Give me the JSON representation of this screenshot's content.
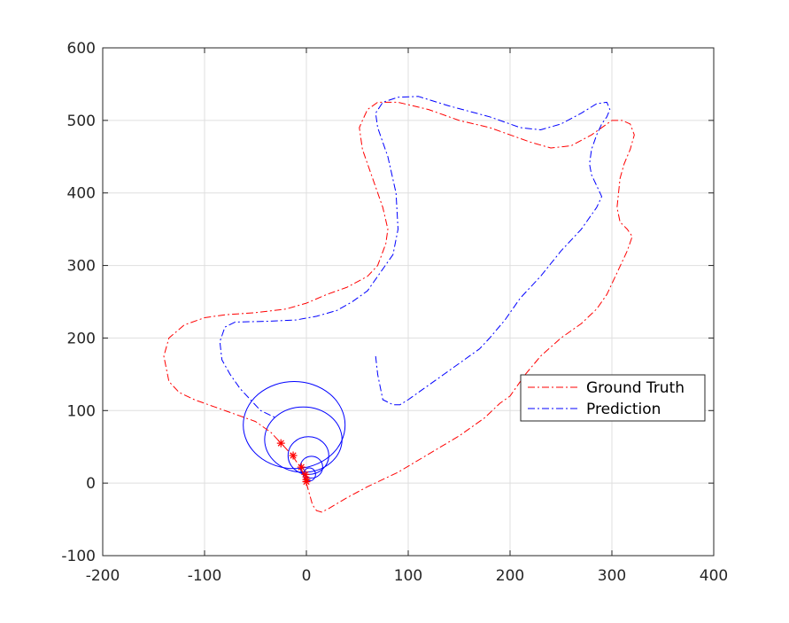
{
  "chart_data": {
    "type": "line",
    "title": "",
    "xlabel": "",
    "ylabel": "",
    "xlim": [
      -200,
      400
    ],
    "ylim": [
      -100,
      600
    ],
    "xticks": [
      -200,
      -100,
      0,
      100,
      200,
      300,
      400
    ],
    "yticks": [
      -100,
      0,
      100,
      200,
      300,
      400,
      500,
      600
    ],
    "grid": true,
    "legend_position": "center-right",
    "series": [
      {
        "name": "Ground Truth",
        "color": "#ff0000",
        "style": "dash-dot",
        "x": [
          0,
          2,
          4,
          6,
          10,
          15,
          22,
          40,
          60,
          90,
          120,
          150,
          175,
          190,
          200,
          215,
          230,
          250,
          270,
          285,
          295,
          305,
          315,
          320,
          315,
          308,
          305,
          308,
          312,
          318,
          322,
          318,
          310,
          300,
          280,
          260,
          240,
          220,
          200,
          180,
          150,
          120,
          90,
          70,
          60,
          55,
          52,
          55,
          65,
          75,
          80,
          78,
          70,
          60,
          40,
          20,
          0,
          -20,
          -50,
          -80,
          -100,
          -120,
          -135,
          -140,
          -135,
          -125,
          -110,
          -90,
          -70,
          -50,
          -35,
          -25,
          -15,
          -5,
          0
        ],
        "y": [
          0,
          -10,
          -20,
          -30,
          -38,
          -40,
          -35,
          -20,
          -5,
          15,
          40,
          65,
          90,
          110,
          120,
          150,
          175,
          200,
          220,
          240,
          260,
          290,
          320,
          340,
          350,
          360,
          380,
          420,
          440,
          460,
          480,
          495,
          500,
          500,
          480,
          465,
          462,
          470,
          480,
          490,
          500,
          515,
          525,
          525,
          515,
          500,
          490,
          460,
          420,
          380,
          350,
          330,
          300,
          285,
          270,
          260,
          248,
          240,
          235,
          232,
          228,
          218,
          200,
          175,
          140,
          125,
          115,
          105,
          95,
          85,
          70,
          55,
          40,
          20,
          0
        ]
      },
      {
        "name": "Prediction",
        "color": "#0000ff",
        "style": "dash-dot",
        "x": [
          68,
          70,
          75,
          85,
          92,
          100,
          115,
          135,
          150,
          170,
          180,
          195,
          210,
          230,
          250,
          270,
          285,
          290,
          285,
          280,
          278,
          280,
          285,
          290,
          295,
          298,
          295,
          285,
          270,
          250,
          230,
          210,
          180,
          140,
          110,
          90,
          75,
          68,
          70,
          80,
          88,
          90,
          85,
          80,
          70,
          60,
          45,
          30,
          10,
          -10,
          -40,
          -70,
          -80,
          -85,
          -83,
          -75,
          -65,
          -55,
          -45,
          -30
        ],
        "y": [
          175,
          150,
          115,
          108,
          108,
          115,
          130,
          150,
          165,
          185,
          200,
          225,
          255,
          285,
          320,
          350,
          380,
          395,
          410,
          425,
          440,
          460,
          480,
          495,
          505,
          515,
          525,
          523,
          510,
          495,
          487,
          490,
          505,
          520,
          533,
          532,
          525,
          510,
          490,
          450,
          400,
          350,
          315,
          305,
          285,
          265,
          250,
          238,
          230,
          225,
          223,
          222,
          215,
          195,
          170,
          150,
          130,
          115,
          100,
          90
        ]
      }
    ],
    "markers": {
      "color": "#ff0000",
      "symbol": "asterisk",
      "points": [
        [
          -25,
          55
        ],
        [
          -13,
          38
        ],
        [
          -5,
          22
        ],
        [
          -1,
          12
        ],
        [
          0,
          5
        ],
        [
          0,
          2
        ]
      ]
    },
    "ellipses": {
      "color": "#0000ff",
      "items": [
        {
          "cx": -12,
          "cy": 80,
          "rx": 50,
          "ry": 60
        },
        {
          "cx": -3,
          "cy": 60,
          "rx": 38,
          "ry": 45
        },
        {
          "cx": 2,
          "cy": 38,
          "rx": 20,
          "ry": 26
        },
        {
          "cx": 5,
          "cy": 22,
          "rx": 11,
          "ry": 15
        },
        {
          "cx": 3,
          "cy": 12,
          "rx": 6,
          "ry": 9
        }
      ]
    }
  }
}
